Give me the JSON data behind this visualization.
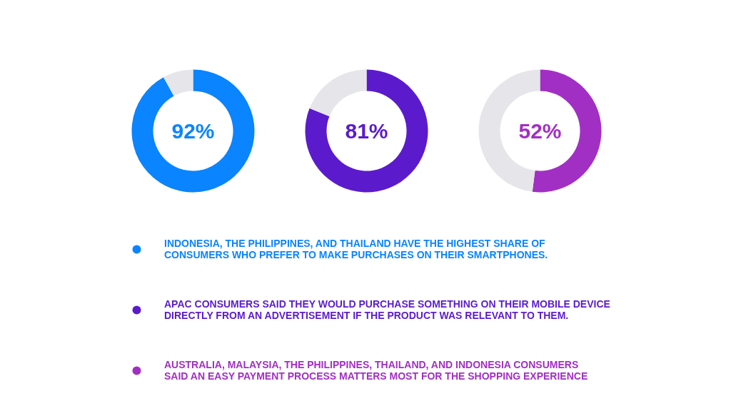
{
  "chart_data": [
    {
      "type": "donut",
      "categories": [
        "INDONESIA, THE PHILIPPINES, AND THAILAND HAVE THE HIGHEST SHARE OF CONSUMERS WHO PREFER TO MAKE PURCHASES ON THEIR SMARTPHONES.",
        null
      ],
      "values": [
        92,
        8
      ],
      "colors": [
        "#0a84ff",
        "#e6e5ea"
      ],
      "value_labels": [
        "92%",
        null
      ],
      "legend": "bottom"
    },
    {
      "type": "donut",
      "categories": [
        "APAC CONSUMERS SAID THEY WOULD PURCHASE SOMETHING ON THEIR MOBILE DEVICE DIRECTLY FROM AN ADVERTISEMENT IF THE PRODUCT WAS RELEVANT TO THEM.",
        null
      ],
      "values": [
        81,
        19
      ],
      "colors": [
        "#5b1bcc",
        "#e6e5ea"
      ],
      "value_labels": [
        "81%",
        null
      ],
      "legend": "bottom"
    },
    {
      "type": "donut",
      "categories": [
        "AUSTRALIA, MALAYSIA, THE PHILIPPINES, THAILAND, AND INDONESIA CONSUMERS SAID AN EASY PAYMENT PROCESS MATTERS MOST FOR THE SHOPPING EXPERIENCE",
        null
      ],
      "values": [
        52,
        48
      ],
      "colors": [
        "#a22fc4",
        "#e6e5ea"
      ],
      "value_labels": [
        "52%",
        null
      ],
      "legend": "bottom"
    }
  ]
}
